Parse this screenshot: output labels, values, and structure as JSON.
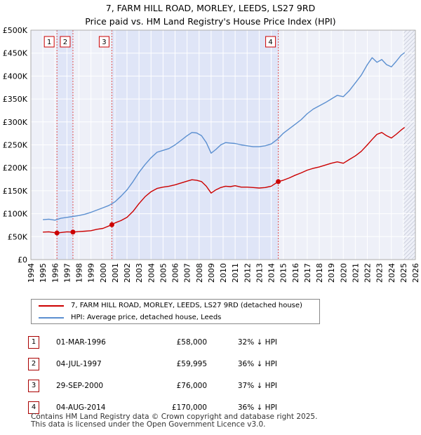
{
  "title_line1": "7, FARM HILL ROAD, MORLEY, LEEDS, LS27 9RD",
  "title_line2": "Price paid vs. HM Land Registry's House Price Index (HPI)",
  "chart_data": {
    "type": "line",
    "title": "7, FARM HILL ROAD, MORLEY, LEEDS, LS27 9RD — Price paid vs. HM Land Registry's House Price Index (HPI)",
    "xlim": [
      1994,
      2026
    ],
    "ylim": [
      0,
      500000
    ],
    "x_ticks": [
      1994,
      1995,
      1996,
      1997,
      1998,
      1999,
      2000,
      2001,
      2002,
      2003,
      2004,
      2005,
      2006,
      2007,
      2008,
      2009,
      2010,
      2011,
      2012,
      2013,
      2014,
      2015,
      2016,
      2017,
      2018,
      2019,
      2020,
      2021,
      2022,
      2023,
      2024,
      2025,
      2026
    ],
    "y_ticks": [
      {
        "value": 0,
        "label": "£0"
      },
      {
        "value": 50000,
        "label": "£50K"
      },
      {
        "value": 100000,
        "label": "£100K"
      },
      {
        "value": 150000,
        "label": "£150K"
      },
      {
        "value": 200000,
        "label": "£200K"
      },
      {
        "value": 250000,
        "label": "£250K"
      },
      {
        "value": 300000,
        "label": "£300K"
      },
      {
        "value": 350000,
        "label": "£350K"
      },
      {
        "value": 400000,
        "label": "£400K"
      },
      {
        "value": 450000,
        "label": "£450K"
      },
      {
        "value": 500000,
        "label": "£500K"
      }
    ],
    "grid": true,
    "series": [
      {
        "name": "7, FARM HILL ROAD, MORLEY, LEEDS, LS27 9RD (detached house)",
        "color": "#cc0000",
        "x": [
          1995.0,
          1995.5,
          1996.17,
          1996.5,
          1997.0,
          1997.5,
          1998.0,
          1998.5,
          1999.0,
          1999.5,
          2000.0,
          2000.74,
          2001.0,
          2001.5,
          2002.0,
          2002.5,
          2003.0,
          2003.5,
          2004.0,
          2004.5,
          2005.0,
          2005.5,
          2006.0,
          2006.5,
          2007.0,
          2007.4,
          2007.8,
          2008.2,
          2008.6,
          2009.0,
          2009.4,
          2009.8,
          2010.2,
          2010.6,
          2011.0,
          2011.5,
          2012.0,
          2012.5,
          2013.0,
          2013.5,
          2014.0,
          2014.59,
          2015.0,
          2015.5,
          2016.0,
          2016.5,
          2017.0,
          2017.5,
          2018.0,
          2018.5,
          2019.0,
          2019.5,
          2020.0,
          2020.5,
          2021.0,
          2021.5,
          2022.0,
          2022.4,
          2022.8,
          2023.2,
          2023.6,
          2024.0,
          2024.4,
          2024.8,
          2025.1
        ],
        "values": [
          60000,
          60500,
          58000,
          59000,
          60500,
          59995,
          61000,
          62000,
          63000,
          66000,
          68000,
          76000,
          80000,
          85000,
          92000,
          105000,
          122000,
          137000,
          148000,
          155000,
          158000,
          160000,
          163000,
          167000,
          171000,
          174000,
          173000,
          170000,
          160000,
          145000,
          152000,
          157000,
          160000,
          159000,
          161000,
          158000,
          158000,
          157000,
          156000,
          157000,
          160000,
          170000,
          173000,
          178000,
          184000,
          189000,
          195000,
          199000,
          202000,
          206000,
          210000,
          213000,
          210000,
          218000,
          226000,
          236000,
          250000,
          262000,
          273000,
          277000,
          270000,
          265000,
          273000,
          282000,
          288000
        ]
      },
      {
        "name": "HPI: Average price, detached house, Leeds",
        "color": "#5b8fd0",
        "x": [
          1995.0,
          1995.5,
          1996.0,
          1996.5,
          1997.0,
          1997.5,
          1998.0,
          1998.5,
          1999.0,
          1999.5,
          2000.0,
          2000.5,
          2001.0,
          2001.5,
          2002.0,
          2002.5,
          2003.0,
          2003.5,
          2004.0,
          2004.5,
          2005.0,
          2005.5,
          2006.0,
          2006.5,
          2007.0,
          2007.4,
          2007.8,
          2008.2,
          2008.6,
          2009.0,
          2009.4,
          2009.8,
          2010.2,
          2010.6,
          2011.0,
          2011.5,
          2012.0,
          2012.5,
          2013.0,
          2013.5,
          2014.0,
          2014.5,
          2015.0,
          2015.5,
          2016.0,
          2016.5,
          2017.0,
          2017.5,
          2018.0,
          2018.5,
          2019.0,
          2019.5,
          2020.0,
          2020.5,
          2021.0,
          2021.5,
          2022.0,
          2022.4,
          2022.8,
          2023.2,
          2023.6,
          2024.0,
          2024.4,
          2024.8,
          2025.1
        ],
        "values": [
          87000,
          88000,
          86000,
          90000,
          92000,
          94000,
          96000,
          99000,
          103000,
          108000,
          113000,
          118000,
          126000,
          138000,
          152000,
          170000,
          190000,
          207000,
          222000,
          234000,
          238000,
          242000,
          250000,
          260000,
          270000,
          277000,
          276000,
          270000,
          255000,
          232000,
          240000,
          250000,
          255000,
          254000,
          253000,
          250000,
          248000,
          246000,
          246000,
          248000,
          252000,
          262000,
          275000,
          285000,
          295000,
          305000,
          318000,
          328000,
          335000,
          342000,
          350000,
          358000,
          355000,
          368000,
          385000,
          402000,
          425000,
          440000,
          430000,
          436000,
          425000,
          420000,
          432000,
          445000,
          451000
        ]
      }
    ],
    "sale_markers": [
      {
        "num": "1",
        "x": 1996.17,
        "value": 58000
      },
      {
        "num": "2",
        "x": 1997.5,
        "value": 59995
      },
      {
        "num": "3",
        "x": 2000.74,
        "value": 76000
      },
      {
        "num": "4",
        "x": 2014.59,
        "value": 170000
      }
    ],
    "legend_placement": "below"
  },
  "legend": {
    "property_label": "7, FARM HILL ROAD, MORLEY, LEEDS, LS27 9RD (detached house)",
    "hpi_label": "HPI: Average price, detached house, Leeds",
    "property_color": "#cc0000",
    "hpi_color": "#5b8fd0"
  },
  "sales": [
    {
      "num": "1",
      "date": "01-MAR-1996",
      "price": "£58,000",
      "hpi": "32% ↓ HPI"
    },
    {
      "num": "2",
      "date": "04-JUL-1997",
      "price": "£59,995",
      "hpi": "36% ↓ HPI"
    },
    {
      "num": "3",
      "date": "29-SEP-2000",
      "price": "£76,000",
      "hpi": "37% ↓ HPI"
    },
    {
      "num": "4",
      "date": "04-AUG-2014",
      "price": "£170,000",
      "hpi": "36% ↓ HPI"
    }
  ],
  "footer": {
    "line1": "Contains HM Land Registry data © Crown copyright and database right 2025.",
    "line2": "This data is licensed under the Open Government Licence v3.0."
  }
}
